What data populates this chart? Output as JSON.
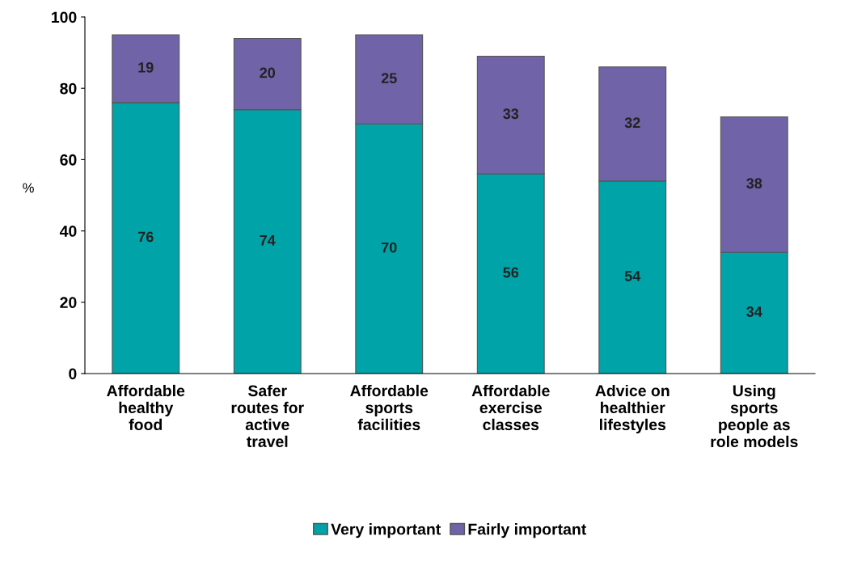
{
  "chart_data": {
    "type": "bar",
    "stacked": true,
    "ylabel": "%",
    "categories": [
      "Affordable\nhealthy\nfood",
      "Safer\nroutes for\nactive\ntravel",
      "Affordable\nsports\nfacilities",
      "Affordable\nexercise\nclasses",
      "Advice on\nhealthier\nlifestyles",
      "Using\nsports\npeople as\nrole models"
    ],
    "series": [
      {
        "name": "Very important",
        "color": "#00a3a8",
        "values": [
          76,
          74,
          70,
          56,
          54,
          34
        ]
      },
      {
        "name": "Fairly important",
        "color": "#7163a8",
        "values": [
          19,
          20,
          25,
          33,
          32,
          38
        ]
      }
    ],
    "ylim": [
      0,
      100
    ],
    "yticks": [
      0,
      20,
      40,
      60,
      80,
      100
    ],
    "grid": false,
    "legend": "bottom",
    "data_labels": true
  }
}
